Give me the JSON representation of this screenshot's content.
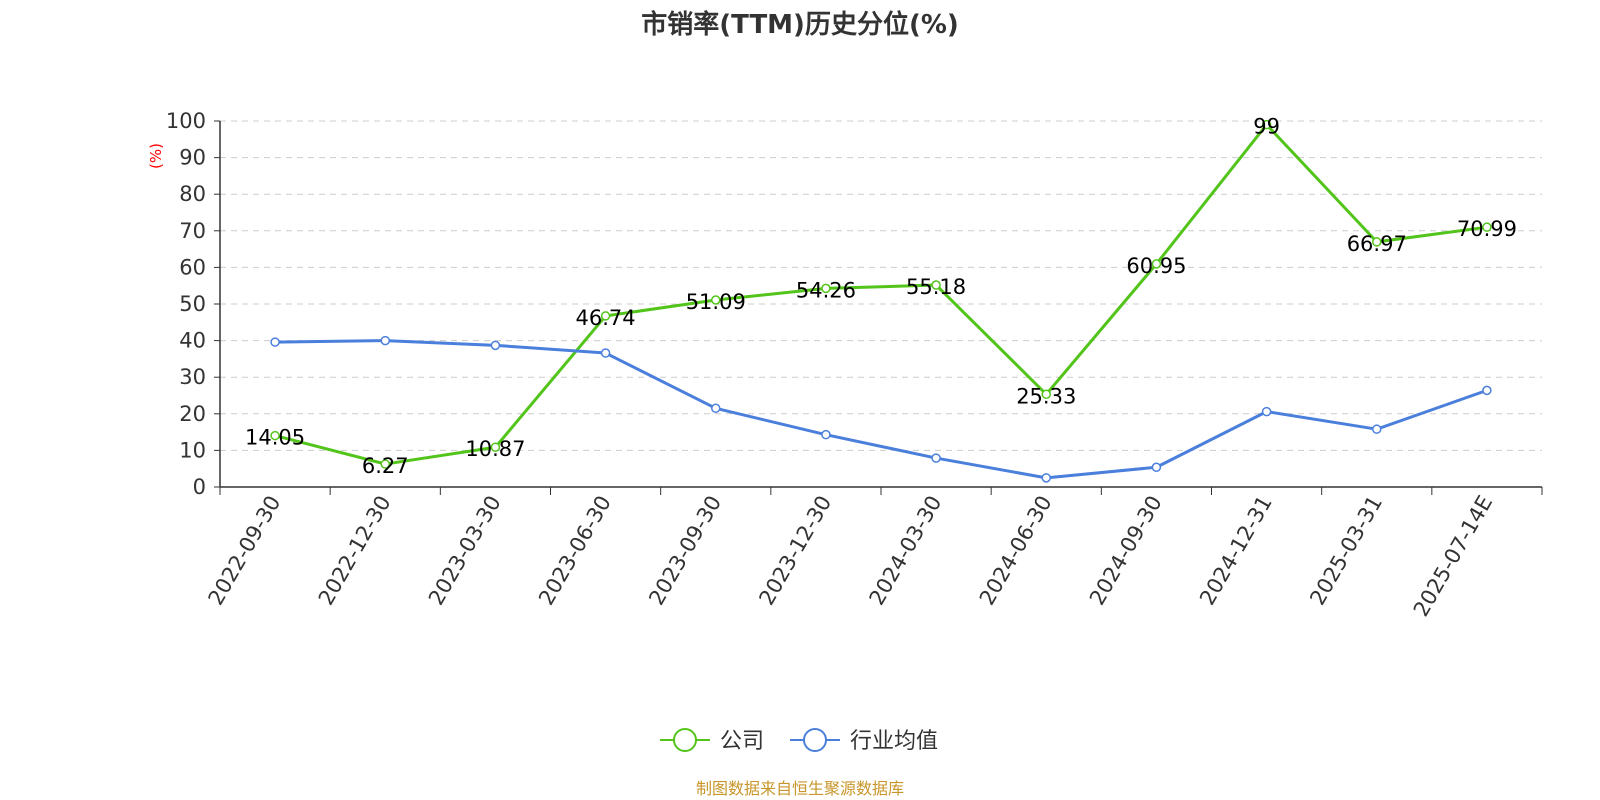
{
  "colors": {
    "company": "#52c41a",
    "industry": "#4a7fdc",
    "source": "#c8962a",
    "unit": "#ff0000",
    "grid": "#cccccc"
  },
  "chart_data": {
    "type": "line",
    "title": "市销率(TTM)历史分位(%)",
    "ylabel": "(%)",
    "ylim": [
      0,
      100
    ],
    "yticks": [
      0,
      10,
      20,
      30,
      40,
      50,
      60,
      70,
      80,
      90,
      100
    ],
    "grid": true,
    "legend_position": "bottom-center",
    "categories": [
      "2022-09-30",
      "2022-12-30",
      "2023-03-30",
      "2023-06-30",
      "2023-09-30",
      "2023-12-30",
      "2024-03-30",
      "2024-06-30",
      "2024-09-30",
      "2024-12-31",
      "2025-03-31",
      "2025-07-14E"
    ],
    "series": [
      {
        "name": "公司",
        "color": "#52c41a",
        "values": [
          14.05,
          6.27,
          10.87,
          46.74,
          51.09,
          54.26,
          55.18,
          25.33,
          60.95,
          99,
          66.97,
          70.99
        ],
        "labels": [
          "14.05",
          "6.27",
          "10.87",
          "46.74",
          "51.09",
          "54.26",
          "55.18",
          "25.33",
          "60.95",
          "99",
          "66.97",
          "70.99"
        ]
      },
      {
        "name": "行业均值",
        "color": "#4a7fdc",
        "values": [
          39.6,
          40.0,
          38.7,
          36.6,
          21.5,
          14.3,
          7.9,
          2.5,
          5.4,
          20.6,
          15.8,
          26.4
        ]
      }
    ]
  },
  "source_text": "制图数据来自恒生聚源数据库"
}
